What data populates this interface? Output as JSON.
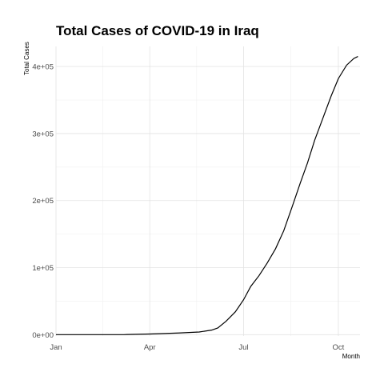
{
  "chart_data": {
    "type": "line",
    "title": "Total Cases of COVID-19 in Iraq",
    "xlabel": "Month",
    "ylabel": "Total Cases",
    "x_unit": "day_of_year_2020",
    "xlim": [
      1,
      296
    ],
    "ylim": [
      -2000,
      430000
    ],
    "grid": true,
    "legend": "none",
    "x_ticks": [
      {
        "label": "Jan",
        "value": 1
      },
      {
        "label": "Apr",
        "value": 92
      },
      {
        "label": "Jul",
        "value": 183
      },
      {
        "label": "Oct",
        "value": 275
      }
    ],
    "y_ticks": [
      {
        "label": "0e+00",
        "value": 0
      },
      {
        "label": "1e+05",
        "value": 100000
      },
      {
        "label": "2e+05",
        "value": 200000
      },
      {
        "label": "3e+05",
        "value": 300000
      },
      {
        "label": "4e+05",
        "value": 400000
      }
    ],
    "series": [
      {
        "color": "#000000",
        "x": [
          1,
          30,
          55,
          67,
          70,
          92,
          120,
          140,
          152,
          158,
          166,
          175,
          183,
          190,
          198,
          206,
          214,
          222,
          230,
          238,
          245,
          252,
          260,
          268,
          275,
          283,
          290,
          294
        ],
        "y": [
          0,
          0,
          0,
          0,
          200,
          1000,
          2500,
          4000,
          6800,
          10000,
          20000,
          34000,
          52000,
          72000,
          88000,
          107000,
          128000,
          155000,
          190000,
          226000,
          256000,
          290000,
          323000,
          356000,
          382000,
          402000,
          412000,
          415000
        ]
      }
    ]
  }
}
